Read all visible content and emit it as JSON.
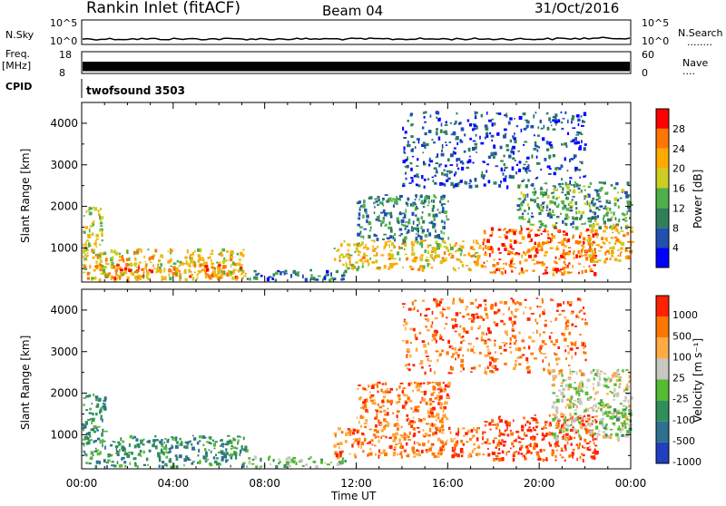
{
  "header": {
    "title": "Rankin Inlet (fitACF)",
    "beam": "Beam 04",
    "date": "31/Oct/2016"
  },
  "top_panels": {
    "nsky_label": "N.Sky",
    "nsky_ticks": [
      "10^5",
      "10^0"
    ],
    "nsearch_label": "N.Search",
    "nsearch_ticks": [
      "10^5",
      "10^0"
    ],
    "freq_label": "Freq.",
    "freq_unit": "[MHz]",
    "freq_ticks": [
      "18",
      "8"
    ],
    "nave_label": "Nave",
    "nave_ticks": [
      "60",
      "0"
    ],
    "cpid_label": "CPID",
    "cpid_value": "twofsound 3503"
  },
  "chart_data": [
    {
      "type": "heatmap",
      "name": "power",
      "ylabel": "Slant Range [km]",
      "xlabel": "Time UT",
      "xlim": [
        0,
        24
      ],
      "ylim": [
        180,
        4500
      ],
      "x_ticks": [
        "00:00",
        "04:00",
        "08:00",
        "12:00",
        "16:00",
        "20:00",
        "00:00"
      ],
      "y_ticks": [
        1000,
        2000,
        3000,
        4000
      ],
      "colorbar_label": "Power [dB]",
      "colorbar_ticks": [
        "28",
        "24",
        "20",
        "16",
        "12",
        "8",
        "4"
      ],
      "colorbar_range": [
        0,
        32
      ],
      "colors": [
        "#0000ff",
        "#2050b0",
        "#2f7f5a",
        "#4db04a",
        "#cccc22",
        "#ffaa00",
        "#ff7700",
        "#ff0000"
      ],
      "blobs": [
        {
          "t0": 0.0,
          "t1": 7.2,
          "r0": 250,
          "r1": 1000,
          "level": 20
        },
        {
          "t0": 0.0,
          "t1": 0.9,
          "r0": 800,
          "r1": 2000,
          "level": 18
        },
        {
          "t0": 1.0,
          "t1": 7.0,
          "r0": 300,
          "r1": 650,
          "level": 24
        },
        {
          "t0": 7.2,
          "t1": 11.5,
          "r0": 250,
          "r1": 500,
          "level": 8
        },
        {
          "t0": 11.0,
          "t1": 17.5,
          "r0": 500,
          "r1": 1200,
          "level": 20
        },
        {
          "t0": 12.0,
          "t1": 16.0,
          "r0": 1200,
          "r1": 2300,
          "level": 10
        },
        {
          "t0": 17.5,
          "t1": 22.5,
          "r0": 400,
          "r1": 1500,
          "level": 26
        },
        {
          "t0": 19.0,
          "t1": 24.0,
          "r0": 1500,
          "r1": 2600,
          "level": 12
        },
        {
          "t0": 22.0,
          "t1": 24.0,
          "r0": 700,
          "r1": 1600,
          "level": 22
        },
        {
          "t0": 14.0,
          "t1": 22.0,
          "r0": 2500,
          "r1": 4300,
          "level": 6
        }
      ]
    },
    {
      "type": "heatmap",
      "name": "velocity",
      "ylabel": "Slant Range [km]",
      "xlabel": "Time UT",
      "xlim": [
        0,
        24
      ],
      "ylim": [
        180,
        4500
      ],
      "x_ticks": [
        "00:00",
        "04:00",
        "08:00",
        "12:00",
        "16:00",
        "20:00",
        "00:00"
      ],
      "y_ticks": [
        1000,
        2000,
        3000,
        4000
      ],
      "colorbar_label": "Velocity [m s⁻¹]",
      "colorbar_ticks": [
        "1000",
        "500",
        "100",
        "25",
        "-25",
        "-100",
        "-500",
        "-1000"
      ],
      "colors": [
        "#2040c0",
        "#2f6f8f",
        "#2f8f5a",
        "#55bb33",
        "#c8c8c0",
        "#ffaa44",
        "#ff7700",
        "#ff2200"
      ],
      "blobs": [
        {
          "t0": 0.0,
          "t1": 7.2,
          "r0": 250,
          "r1": 1000,
          "level": 2
        },
        {
          "t0": 0.0,
          "t1": 1.0,
          "r0": 800,
          "r1": 2000,
          "level": 2
        },
        {
          "t0": 7.2,
          "t1": 11.5,
          "r0": 250,
          "r1": 500,
          "level": 3
        },
        {
          "t0": 11.0,
          "t1": 17.5,
          "r0": 500,
          "r1": 1200,
          "level": 6
        },
        {
          "t0": 12.0,
          "t1": 16.0,
          "r0": 1200,
          "r1": 2300,
          "level": 6
        },
        {
          "t0": 17.5,
          "t1": 22.5,
          "r0": 400,
          "r1": 1500,
          "level": 7
        },
        {
          "t0": 20.5,
          "t1": 24.0,
          "r0": 900,
          "r1": 2600,
          "level": 4
        },
        {
          "t0": 22.5,
          "t1": 24.0,
          "r0": 1000,
          "r1": 1800,
          "level": 3
        },
        {
          "t0": 14.0,
          "t1": 22.0,
          "r0": 2500,
          "r1": 4300,
          "level": 6
        }
      ]
    }
  ]
}
